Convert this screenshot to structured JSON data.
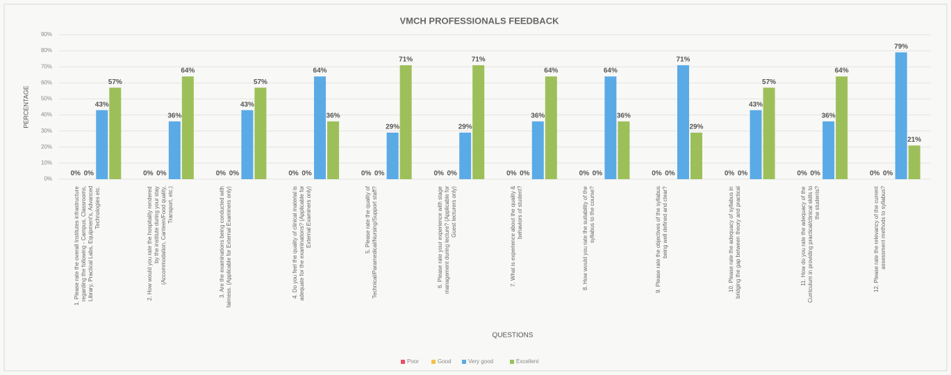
{
  "chart_data": {
    "type": "bar",
    "title": "VMCH PROFESSIONALS FEEDBACK",
    "y_label": "PERCENTAGE",
    "x_label": "QUESTIONS",
    "categories": [
      "1. Please rate the overall Institutes infrastructure regarding the following - Campus, Classrooms, Library, Practical Labs, Equipment's, Advanced Technologies etc.",
      "2. How would you rate the hospitality rendered by the institute during your stay (Accommodation, Canteen/Food quality, Transport, etc.)",
      "3. Are the examinations being conducted with fairness. (Applicable for External Examiners only)",
      "4. Do you feel the quality of clinical material is adequate for the examinations? (Applicable for External Examiners only)",
      "5. Please rate the quality of Technical/Paramedical/Nursing/Support staff?",
      "6. Please rate your experience with stage management during lecture? (Applicable for Guest lecturers only)",
      "7. What is experience about the quality & behaviors of student?",
      "8. How would you rate the suitability of the syllabus to the course?",
      "9. Please rate the objectives of the syllabus being well defined and clear?",
      "10. Please rate the adequacy of syllabus in bridging the gap between theory and practical",
      "11. How do you rate the adequacy of the Curriculum in providing practical/clinical skills to the students?",
      "12. Please rate the relevancy of the current assessment methods to syllabus?"
    ],
    "series": [
      {
        "name": "Poor",
        "color": "#e8506a",
        "values": [
          0,
          0,
          0,
          0,
          0,
          0,
          0,
          0,
          0,
          0,
          0,
          0
        ],
        "value_labels": [
          "0%",
          "0%",
          "0%",
          "0%",
          "0%",
          "0%",
          "0%",
          "0%",
          "0%",
          "0%",
          "0%",
          "0%"
        ]
      },
      {
        "name": "Good",
        "color": "#f2c24a",
        "values": [
          0,
          0,
          0,
          0,
          0,
          0,
          0,
          0,
          0,
          0,
          0,
          0
        ],
        "value_labels": [
          "0%",
          "0%",
          "0%",
          "0%",
          "0%",
          "0%",
          "0%",
          "0%",
          "0%",
          "0%",
          "0%",
          "0%"
        ]
      },
      {
        "name": "Very good",
        "color": "#5aaae6",
        "values": [
          43,
          36,
          43,
          64,
          29,
          29,
          36,
          64,
          71,
          43,
          36,
          79
        ],
        "value_labels": [
          "43%",
          "36%",
          "43%",
          "64%",
          "29%",
          "29%",
          "36%",
          "64%",
          "71%",
          "43%",
          "36%",
          "79%"
        ]
      },
      {
        "name": "Excellent",
        "color": "#9dbf5a",
        "values": [
          57,
          64,
          57,
          36,
          71,
          71,
          64,
          36,
          29,
          57,
          64,
          21
        ],
        "value_labels": [
          "57%",
          "64%",
          "57%",
          "36%",
          "71%",
          "71%",
          "64%",
          "36%",
          "29%",
          "57%",
          "64%",
          "21%"
        ]
      }
    ],
    "ylim": [
      0,
      90
    ],
    "yticks": [
      {
        "value": 0,
        "label": "0%"
      },
      {
        "value": 10,
        "label": "10%"
      },
      {
        "value": 20,
        "label": "20%"
      },
      {
        "value": 30,
        "label": "30%"
      },
      {
        "value": 40,
        "label": "40%"
      },
      {
        "value": 50,
        "label": "50%"
      },
      {
        "value": 60,
        "label": "60%"
      },
      {
        "value": 70,
        "label": "70%"
      },
      {
        "value": 80,
        "label": "80%"
      },
      {
        "value": 90,
        "label": "90%"
      }
    ],
    "grid": true,
    "legend": "bottom"
  }
}
